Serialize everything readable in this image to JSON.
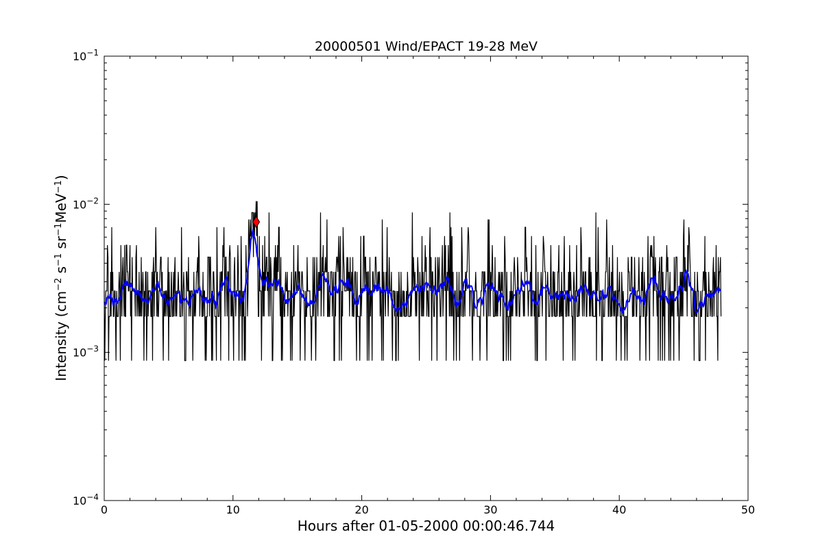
{
  "chart_data": {
    "type": "line",
    "title": "20000501 Wind/EPACT 19-28 MeV",
    "xlabel": "Hours after 01-05-2000 00:00:46.744",
    "ylabel_prefix": "Intensity (cm",
    "ylabel_parts": [
      {
        "text": "−2",
        "sup": true
      },
      {
        "text": " s",
        "sup": false
      },
      {
        "text": "−1",
        "sup": true
      },
      {
        "text": " sr",
        "sup": false
      },
      {
        "text": "−1",
        "sup": true
      },
      {
        "text": "MeV",
        "sup": false
      },
      {
        "text": "−1",
        "sup": true
      },
      {
        "text": ")",
        "sup": false
      }
    ],
    "xlim": [
      0,
      50
    ],
    "ylim": [
      0.0001,
      0.1
    ],
    "yscale": "log",
    "grid": false,
    "x_ticks": [
      {
        "value": 0,
        "label": "0"
      },
      {
        "value": 10,
        "label": "10"
      },
      {
        "value": 20,
        "label": "20"
      },
      {
        "value": 30,
        "label": "30"
      },
      {
        "value": 40,
        "label": "40"
      },
      {
        "value": 50,
        "label": "50"
      }
    ],
    "y_ticks": [
      {
        "value": 0.0001,
        "base": "10",
        "exp": "−4"
      },
      {
        "value": 0.001,
        "base": "10",
        "exp": "−3"
      },
      {
        "value": 0.01,
        "base": "10",
        "exp": "−2"
      },
      {
        "value": 0.1,
        "base": "10",
        "exp": "−1"
      }
    ],
    "series": [
      {
        "color": "#000000",
        "style": "raw",
        "x_start": 0.0,
        "x_end": 47.9,
        "levels": [
          0.00088,
          0.00175,
          0.0026,
          0.0035,
          0.0044,
          0.0053,
          0.0061,
          0.007,
          0.0079,
          0.0088,
          0.0105
        ],
        "level_weights": [
          0.08,
          0.3,
          0.27,
          0.18,
          0.1,
          0.03,
          0.02,
          0.01,
          0.005,
          0.005,
          0.0
        ],
        "seed": 20000501
      },
      {
        "color": "#0000ff",
        "style": "smoothed",
        "x_start": 0.0,
        "x_end": 47.9,
        "baseline": 0.0029
      }
    ],
    "marker": {
      "x": 11.8,
      "y": 0.0076,
      "color": "#ff0000",
      "shape": "diamond"
    },
    "burst": {
      "x_start": 11.2,
      "x_end": 11.9,
      "level": 0.0075
    }
  }
}
